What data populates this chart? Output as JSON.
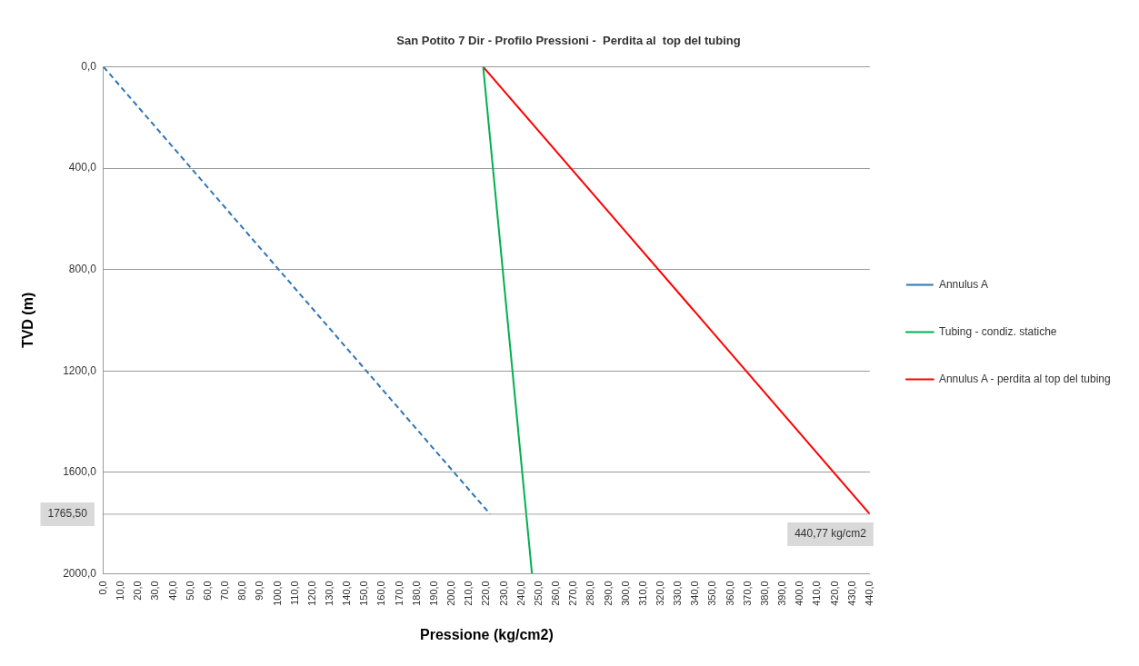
{
  "chart_data": {
    "type": "line",
    "title": "San Potito 7 Dir - Profilo Pressioni -  Perdita al  top del tubing",
    "xlabel": "Pressione (kg/cm2)",
    "ylabel": "TVD (m)",
    "xlim": [
      0,
      440
    ],
    "ylim": [
      2000,
      0
    ],
    "xticks": [
      {
        "value": 0,
        "label": "0,0"
      },
      {
        "value": 10,
        "label": "10,0"
      },
      {
        "value": 20,
        "label": "20,0"
      },
      {
        "value": 30,
        "label": "30,0"
      },
      {
        "value": 40,
        "label": "40,0"
      },
      {
        "value": 50,
        "label": "50,0"
      },
      {
        "value": 60,
        "label": "60,0"
      },
      {
        "value": 70,
        "label": "70,0"
      },
      {
        "value": 80,
        "label": "80,0"
      },
      {
        "value": 90,
        "label": "90,0"
      },
      {
        "value": 100,
        "label": "100,0"
      },
      {
        "value": 110,
        "label": "110,0"
      },
      {
        "value": 120,
        "label": "120,0"
      },
      {
        "value": 130,
        "label": "130,0"
      },
      {
        "value": 140,
        "label": "140,0"
      },
      {
        "value": 150,
        "label": "150,0"
      },
      {
        "value": 160,
        "label": "160,0"
      },
      {
        "value": 170,
        "label": "170,0"
      },
      {
        "value": 180,
        "label": "180,0"
      },
      {
        "value": 190,
        "label": "190,0"
      },
      {
        "value": 200,
        "label": "200,0"
      },
      {
        "value": 210,
        "label": "210,0"
      },
      {
        "value": 220,
        "label": "220,0"
      },
      {
        "value": 230,
        "label": "230,0"
      },
      {
        "value": 240,
        "label": "240,0"
      },
      {
        "value": 250,
        "label": "250,0"
      },
      {
        "value": 260,
        "label": "260,0"
      },
      {
        "value": 270,
        "label": "270,0"
      },
      {
        "value": 280,
        "label": "280,0"
      },
      {
        "value": 290,
        "label": "290,0"
      },
      {
        "value": 300,
        "label": "300,0"
      },
      {
        "value": 310,
        "label": "310,0"
      },
      {
        "value": 320,
        "label": "320,0"
      },
      {
        "value": 330,
        "label": "330,0"
      },
      {
        "value": 340,
        "label": "340,0"
      },
      {
        "value": 350,
        "label": "350,0"
      },
      {
        "value": 360,
        "label": "360,0"
      },
      {
        "value": 370,
        "label": "370,0"
      },
      {
        "value": 380,
        "label": "380,0"
      },
      {
        "value": 390,
        "label": "390,0"
      },
      {
        "value": 400,
        "label": "400,0"
      },
      {
        "value": 410,
        "label": "410,0"
      },
      {
        "value": 420,
        "label": "420,0"
      },
      {
        "value": 430,
        "label": "430,0"
      },
      {
        "value": 440,
        "label": "440,0"
      }
    ],
    "yticks": [
      {
        "value": 0,
        "label": "0,0"
      },
      {
        "value": 400,
        "label": "400,0"
      },
      {
        "value": 800,
        "label": "800,0"
      },
      {
        "value": 1200,
        "label": "1200,0"
      },
      {
        "value": 1600,
        "label": "1600,0"
      },
      {
        "value": 2000,
        "label": "2000,0"
      }
    ],
    "grid": "y",
    "legend": "right",
    "marker": "none",
    "series": [
      {
        "name": "Annulus A",
        "color": "#2e75b6",
        "line_style": "dashed",
        "x": [
          0,
          222
        ],
        "values": [
          0,
          1765.5
        ]
      },
      {
        "name": "Tubing - condiz. statiche",
        "color": "#00b050",
        "line_style": "solid",
        "x": [
          218,
          246
        ],
        "values": [
          0,
          2000
        ]
      },
      {
        "name": "Annulus A - perdita al top del tubing",
        "color": "#ff0000",
        "line_style": "solid",
        "x": [
          218,
          440
        ],
        "values": [
          0,
          1765.5
        ]
      }
    ],
    "ref_lines": [
      {
        "axis": "y",
        "value": 1765.5,
        "label": "1765,50",
        "color": "#a6a6a6"
      }
    ],
    "annotations": [
      {
        "text": "440,77 kg/cm2",
        "x": 440,
        "y": 1765.5
      }
    ]
  }
}
